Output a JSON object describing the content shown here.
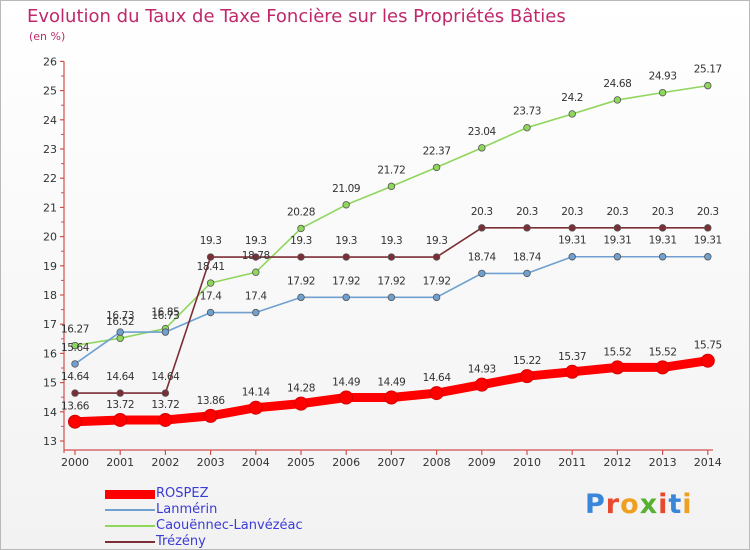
{
  "chart_data": {
    "type": "line",
    "title": "Evolution du Taux de Taxe Foncière sur les Propriétés Bâties",
    "subtitle": "(en %)",
    "x": [
      "2000",
      "2001",
      "2002",
      "2003",
      "2004",
      "2005",
      "2006",
      "2007",
      "2008",
      "2009",
      "2010",
      "2011",
      "2012",
      "2013",
      "2014"
    ],
    "ylim": [
      13,
      26
    ],
    "yticks": [
      "13",
      "14",
      "15",
      "16",
      "17",
      "18",
      "19",
      "20",
      "21",
      "22",
      "23",
      "24",
      "25",
      "26"
    ],
    "grid": false,
    "legend_position": "bottom-left",
    "series": [
      {
        "name": "ROSPEZ",
        "color": "#ff0000",
        "values": [
          13.66,
          13.72,
          13.72,
          13.86,
          14.14,
          14.28,
          14.49,
          14.49,
          14.64,
          14.93,
          15.22,
          15.37,
          15.52,
          15.52,
          15.75
        ],
        "labels": [
          "13.66",
          "13.72",
          "13.72",
          "13.86",
          "14.14",
          "14.28",
          "14.49",
          "14.49",
          "14.64",
          "14.93",
          "15.22",
          "15.37",
          "15.52",
          "15.52",
          "15.75"
        ]
      },
      {
        "name": "Lanmérin",
        "color": "#6fa0d0",
        "values": [
          15.64,
          16.73,
          16.73,
          17.4,
          17.4,
          17.92,
          17.92,
          17.92,
          17.92,
          18.74,
          18.74,
          19.31,
          19.31,
          19.31,
          19.31
        ],
        "labels": [
          "15.64",
          "16.73",
          "16.73",
          "17.4",
          "17.4",
          "17.92",
          "17.92",
          "17.92",
          "17.92",
          "18.74",
          "18.74",
          "19.31",
          "19.31",
          "19.31",
          "19.31"
        ]
      },
      {
        "name": "Caouënnec-Lanvézéac",
        "color": "#8fd65c",
        "values": [
          16.27,
          16.52,
          16.85,
          18.41,
          18.78,
          20.28,
          21.09,
          21.72,
          22.37,
          23.04,
          23.73,
          24.2,
          24.68,
          24.93,
          25.17
        ],
        "labels": [
          "16.27",
          "16.52",
          "16.85",
          "18.41",
          "18.78",
          "20.28",
          "21.09",
          "21.72",
          "22.37",
          "23.04",
          "23.73",
          "24.2",
          "24.68",
          "24.93",
          "25.17"
        ]
      },
      {
        "name": "Trézény",
        "color": "#7b2e36",
        "values": [
          14.64,
          14.64,
          14.64,
          19.3,
          19.3,
          19.3,
          19.3,
          19.3,
          19.3,
          20.3,
          20.3,
          20.3,
          20.3,
          20.3,
          20.3
        ],
        "labels": [
          "14.64",
          "14.64",
          "14.64",
          "19.3",
          "19.3",
          "19.3",
          "19.3",
          "19.3",
          "19.3",
          "20.3",
          "20.3",
          "20.3",
          "20.3",
          "20.3",
          "20.3"
        ]
      }
    ]
  },
  "logo": {
    "letters": [
      "P",
      "r",
      "o",
      "x",
      "i",
      "t",
      "i"
    ],
    "colors": [
      "#3a86d8",
      "#e8492e",
      "#f0a020",
      "#58b030",
      "#e8492e",
      "#3a86d8",
      "#f0a020"
    ]
  }
}
